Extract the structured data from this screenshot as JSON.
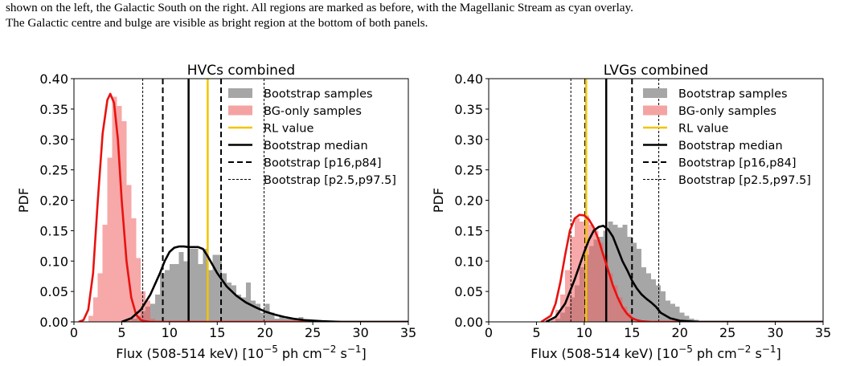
{
  "caption": {
    "line1": "shown on the left, the Galactic South on the right. All regions are marked as before, with the Magellanic Stream as cyan overlay.",
    "line2": "The Galactic centre and bulge are visible as bright region at the bottom of both panels."
  },
  "colors": {
    "bootstrap_hist": "#a6a6a6",
    "bg_hist": "#f4a3a3",
    "bg_curve": "#e8120f",
    "rl_line": "#f2c500",
    "median_line": "#000000"
  },
  "chart_data": [
    {
      "type": "bar",
      "title": "HVCs combined",
      "xlabel_main": "Flux (508-514 keV) [10",
      "xlabel_exp1": "−5",
      "xlabel_unit": " ph cm",
      "xlabel_exp2": "−2",
      "xlabel_s": " s",
      "xlabel_exp3": "−1",
      "xlabel_close": "]",
      "ylabel": "PDF",
      "xlim": [
        0,
        35
      ],
      "ylim": [
        0,
        0.4
      ],
      "xticks": [
        "0",
        "5",
        "10",
        "15",
        "20",
        "25",
        "30",
        "35"
      ],
      "yticks": [
        "0.00",
        "0.05",
        "0.10",
        "0.15",
        "0.20",
        "0.25",
        "0.30",
        "0.35",
        "0.40"
      ],
      "legend": {
        "placement": "top-right",
        "entries": [
          "Bootstrap samples",
          "BG-only samples",
          "RL value",
          "Bootstrap median",
          "Bootstrap [p16,p84]",
          "Bootstrap [p2.5,p97.5]"
        ]
      },
      "bin_width": 0.5,
      "bootstrap_hist": {
        "start": 5.5,
        "values": [
          0.002,
          0.005,
          0.01,
          0.018,
          0.025,
          0.03,
          0.045,
          0.08,
          0.085,
          0.095,
          0.095,
          0.115,
          0.1,
          0.12,
          0.12,
          0.095,
          0.12,
          0.085,
          0.11,
          0.11,
          0.08,
          0.065,
          0.06,
          0.045,
          0.04,
          0.065,
          0.035,
          0.03,
          0.015,
          0.03,
          0.015,
          0.005,
          0.01,
          0.005,
          0.005,
          0.003,
          0.008,
          0.003,
          0.001
        ]
      },
      "bg_hist": {
        "start": 1.5,
        "values": [
          0.01,
          0.04,
          0.08,
          0.16,
          0.27,
          0.37,
          0.355,
          0.33,
          0.225,
          0.17,
          0.105,
          0.05,
          0.035,
          0.005,
          0.002
        ]
      },
      "bg_curve": {
        "x": [
          0.5,
          1.0,
          1.5,
          2.0,
          2.5,
          3.0,
          3.5,
          3.8,
          4.2,
          4.6,
          5.0,
          5.5,
          6.0,
          6.5,
          7.0,
          7.5,
          8.0,
          9.0,
          35.0
        ],
        "y": [
          0.0,
          0.003,
          0.02,
          0.08,
          0.2,
          0.31,
          0.365,
          0.375,
          0.36,
          0.3,
          0.2,
          0.1,
          0.04,
          0.012,
          0.003,
          0.001,
          0.0,
          0.0,
          0.0
        ]
      },
      "bootstrap_curve": {
        "x": [
          5.0,
          6.0,
          7.0,
          8.0,
          9.0,
          9.5,
          10.0,
          10.5,
          11.0,
          11.5,
          12.0,
          12.5,
          13.0,
          13.5,
          14.0,
          15.0,
          16.0,
          17.0,
          18.0,
          19.0,
          20.0,
          21.0,
          22.0,
          23.0,
          24.0,
          26.0,
          28.0,
          35.0
        ],
        "y": [
          0.0,
          0.006,
          0.02,
          0.045,
          0.08,
          0.1,
          0.115,
          0.122,
          0.124,
          0.124,
          0.123,
          0.123,
          0.123,
          0.12,
          0.108,
          0.08,
          0.058,
          0.043,
          0.032,
          0.024,
          0.017,
          0.012,
          0.008,
          0.005,
          0.003,
          0.001,
          0.0,
          0.0
        ]
      },
      "rl_value": 14.0,
      "median": 12.0,
      "p16_p84": [
        9.3,
        15.4
      ],
      "p2_5_p97_5": [
        7.2,
        19.9
      ]
    },
    {
      "type": "bar",
      "title": "LVGs combined",
      "xlabel_main": "Flux (508-514 keV) [10",
      "xlabel_exp1": "−5",
      "xlabel_unit": " ph cm",
      "xlabel_exp2": "−2",
      "xlabel_s": " s",
      "xlabel_exp3": "−1",
      "xlabel_close": "]",
      "ylabel": "PDF",
      "xlim": [
        0,
        35
      ],
      "ylim": [
        0,
        0.4
      ],
      "xticks": [
        "0",
        "5",
        "10",
        "15",
        "20",
        "25",
        "30",
        "35"
      ],
      "yticks": [
        "0.00",
        "0.05",
        "0.10",
        "0.15",
        "0.20",
        "0.25",
        "0.30",
        "0.35",
        "0.40"
      ],
      "legend": {
        "placement": "top-right",
        "entries": [
          "Bootstrap samples",
          "BG-only samples",
          "RL value",
          "Bootstrap median",
          "Bootstrap [p16,p84]",
          "Bootstrap [p2.5,p97.5]"
        ]
      },
      "bin_width": 0.5,
      "bootstrap_hist": {
        "start": 7.0,
        "values": [
          0.005,
          0.015,
          0.025,
          0.04,
          0.06,
          0.09,
          0.11,
          0.125,
          0.135,
          0.14,
          0.15,
          0.165,
          0.16,
          0.155,
          0.16,
          0.14,
          0.13,
          0.12,
          0.09,
          0.08,
          0.07,
          0.06,
          0.05,
          0.035,
          0.03,
          0.025,
          0.015,
          0.01,
          0.005,
          0.003
        ]
      },
      "bg_hist": {
        "start": 6.5,
        "values": [
          0.005,
          0.02,
          0.045,
          0.085,
          0.14,
          0.17,
          0.165,
          0.175,
          0.16,
          0.15,
          0.13,
          0.11,
          0.08,
          0.06,
          0.04,
          0.025,
          0.015,
          0.005,
          0.002
        ]
      },
      "bg_curve": {
        "x": [
          5.5,
          6.5,
          7.0,
          7.5,
          8.0,
          8.5,
          9.0,
          9.5,
          10.0,
          10.5,
          11.0,
          11.5,
          12.0,
          12.5,
          13.0,
          13.5,
          14.0,
          14.5,
          15.0,
          15.5,
          16.0,
          17.0,
          35.0
        ],
        "y": [
          0.0,
          0.01,
          0.03,
          0.065,
          0.11,
          0.15,
          0.17,
          0.176,
          0.175,
          0.168,
          0.155,
          0.135,
          0.11,
          0.085,
          0.06,
          0.04,
          0.024,
          0.013,
          0.006,
          0.003,
          0.001,
          0.0,
          0.0
        ]
      },
      "bootstrap_curve": {
        "x": [
          6.0,
          7.0,
          8.0,
          9.0,
          10.0,
          10.5,
          11.0,
          11.5,
          12.0,
          12.5,
          13.0,
          13.5,
          14.0,
          14.5,
          15.0,
          15.5,
          16.0,
          16.5,
          17.0,
          17.5,
          18.0,
          19.0,
          20.0,
          22.0,
          25.0,
          35.0
        ],
        "y": [
          0.0,
          0.008,
          0.03,
          0.07,
          0.115,
          0.135,
          0.15,
          0.156,
          0.158,
          0.152,
          0.14,
          0.12,
          0.1,
          0.085,
          0.068,
          0.055,
          0.045,
          0.038,
          0.032,
          0.025,
          0.015,
          0.006,
          0.002,
          0.0,
          0.0,
          0.0
        ]
      },
      "rl_value": 10.2,
      "median": 12.3,
      "p16_p84": [
        10.1,
        15.0
      ],
      "p2_5_p97_5": [
        8.6,
        17.8
      ]
    }
  ]
}
